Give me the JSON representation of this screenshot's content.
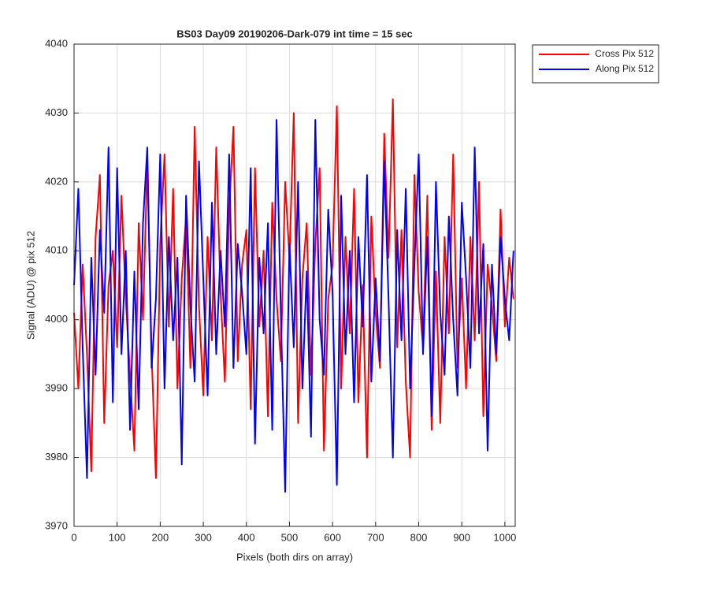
{
  "chart_data": {
    "type": "line",
    "title": "BS03 Day09 20190206-Dark-079 int time = 15 sec",
    "xlabel": "Pixels (both dirs on array)",
    "ylabel": "Signal (ADU) @ pix 512",
    "x": [
      0,
      10,
      20,
      30,
      40,
      50,
      60,
      70,
      80,
      90,
      100,
      110,
      120,
      130,
      140,
      150,
      160,
      170,
      180,
      190,
      200,
      210,
      220,
      230,
      240,
      250,
      260,
      270,
      280,
      290,
      300,
      310,
      320,
      330,
      340,
      350,
      360,
      370,
      380,
      390,
      400,
      410,
      420,
      430,
      440,
      450,
      460,
      470,
      480,
      490,
      500,
      510,
      520,
      530,
      540,
      550,
      560,
      570,
      580,
      590,
      600,
      610,
      620,
      630,
      640,
      650,
      660,
      670,
      680,
      690,
      700,
      710,
      720,
      730,
      740,
      750,
      760,
      770,
      780,
      790,
      800,
      810,
      820,
      830,
      840,
      850,
      860,
      870,
      880,
      890,
      900,
      910,
      920,
      930,
      940,
      950,
      960,
      970,
      980,
      990,
      1000,
      1010,
      1020
    ],
    "series": [
      {
        "name": "Cross Pix 512",
        "color": "#ff0000",
        "values": [
          4001,
          3990,
          4008,
          3995,
          3978,
          4012,
          4021,
          3985,
          4005,
          4010,
          3996,
          4018,
          4003,
          3992,
          3981,
          4014,
          4000,
          4023,
          3995,
          3977,
          4011,
          4024,
          3999,
          4019,
          3990,
          4006,
          4015,
          3993,
          4028,
          4002,
          3989,
          4012,
          3997,
          4025,
          4004,
          3991,
          4016,
          4028,
          3994,
          4008,
          4013,
          3987,
          4022,
          3999,
          4010,
          3986,
          4017,
          4003,
          3994,
          4020,
          4009,
          4030,
          3985,
          4006,
          4014,
          3992,
          4011,
          4022,
          3981,
          4003,
          4008,
          4031,
          3990,
          4012,
          3998,
          4019,
          3988,
          4005,
          3980,
          4015,
          4001,
          3993,
          4027,
          4009,
          4032,
          3996,
          4013,
          3991,
          3980,
          4021,
          4004,
          3996,
          4018,
          3984,
          4007,
          3985,
          4012,
          3998,
          4024,
          3993,
          4006,
          3990,
          4012,
          3997,
          4020,
          3986,
          4008,
          4002,
          3994,
          4016,
          3999,
          4009,
          4003
        ]
      },
      {
        "name": "Along Pix 512",
        "color": "#0000ff",
        "values": [
          4005,
          4019,
          3996,
          3977,
          4009,
          3992,
          4013,
          4001,
          4025,
          3988,
          4022,
          3995,
          4010,
          3984,
          4007,
          3987,
          4014,
          4025,
          3993,
          4003,
          4024,
          3990,
          4012,
          3997,
          4009,
          3979,
          4018,
          4002,
          3991,
          4023,
          4006,
          3989,
          4017,
          3995,
          4010,
          3999,
          4024,
          3993,
          4011,
          4004,
          3995,
          4022,
          3982,
          4009,
          3998,
          4014,
          3984,
          4029,
          4001,
          3975,
          4011,
          3996,
          4020,
          3990,
          4007,
          3983,
          4029,
          4000,
          3992,
          4016,
          4004,
          3976,
          4018,
          3995,
          4010,
          3988,
          4012,
          3999,
          4021,
          3991,
          4006,
          3994,
          4023,
          4003,
          3980,
          4013,
          3997,
          4019,
          3990,
          4008,
          4024,
          3995,
          4012,
          3986,
          4020,
          4001,
          3992,
          4015,
          4000,
          3989,
          4017,
          4006,
          3993,
          4025,
          3998,
          4011,
          3981,
          4008,
          3995,
          4012,
          4003,
          3997,
          4010
        ]
      }
    ],
    "xlim": [
      0,
      1024
    ],
    "ylim": [
      3970,
      4040
    ],
    "xticks": [
      0,
      100,
      200,
      300,
      400,
      500,
      600,
      700,
      800,
      900,
      1000
    ],
    "yticks": [
      3970,
      3980,
      3990,
      4000,
      4010,
      4020,
      4030,
      4040
    ],
    "grid": true,
    "legend": "northeastoutside"
  }
}
